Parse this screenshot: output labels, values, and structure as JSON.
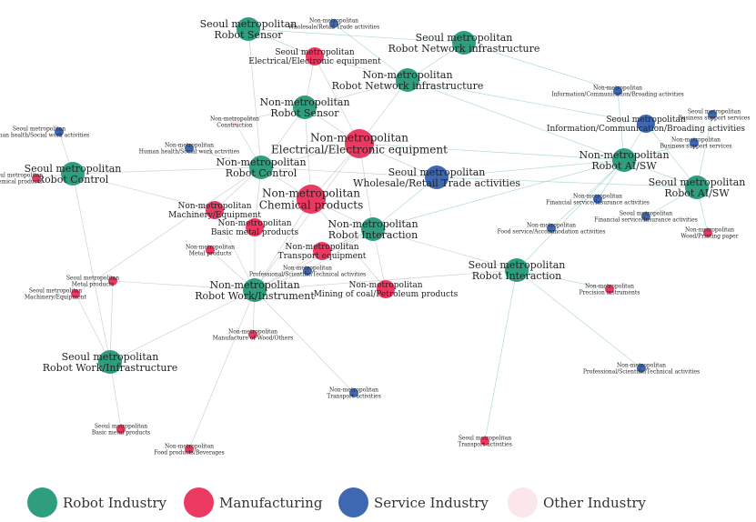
{
  "colors": {
    "robot": "#2e9e7e",
    "manufacturing": "#ea3a62",
    "service": "#3f68b3",
    "other": "#fbe6ea",
    "edge_gray": "#9a9a9a",
    "edge_teal": "#6fbfb0"
  },
  "legend": [
    {
      "label": "Robot Industry",
      "category": "robot"
    },
    {
      "label": "Manufacturing",
      "category": "manufacturing"
    },
    {
      "label": "Service Industry",
      "category": "service"
    },
    {
      "label": "Other Industry",
      "category": "other"
    }
  ],
  "nodes": [
    {
      "id": "smr_sensor",
      "lines": [
        "Seoul metropolitan",
        "Robot Sensor"
      ],
      "category": "robot",
      "size": "m"
    },
    {
      "id": "nmr_wholesale_top",
      "lines": [
        "Non-metropolitan",
        "Wholesale/Retail Trade activities"
      ],
      "category": "service",
      "size": "xs"
    },
    {
      "id": "smr_elec",
      "lines": [
        "Seoul metropolitan",
        "Electrical/Electronic equipment"
      ],
      "category": "manufacturing",
      "size": "s"
    },
    {
      "id": "smr_netinfra",
      "lines": [
        "Seoul metropolitan",
        "Robot Network infrastructure"
      ],
      "category": "robot",
      "size": "m"
    },
    {
      "id": "nmr_netinfra",
      "lines": [
        "Non-metropolitan",
        "Robot Network infrastructure"
      ],
      "category": "robot",
      "size": "m"
    },
    {
      "id": "nmr_sensor",
      "lines": [
        "Non-metropolitan",
        "Robot Sensor"
      ],
      "category": "robot",
      "size": "m"
    },
    {
      "id": "nmr_construction",
      "lines": [
        "Non-metropolitan",
        "Construction"
      ],
      "category": "other",
      "size": "xs"
    },
    {
      "id": "nmr_elec",
      "lines": [
        "Non-metropolitan",
        "Electrical/Electronic equipment"
      ],
      "category": "manufacturing",
      "size": "l"
    },
    {
      "id": "smr_health",
      "lines": [
        "Seoul metropolitan",
        "Human health/Social work activities"
      ],
      "category": "service",
      "size": "xs"
    },
    {
      "id": "nmr_health",
      "lines": [
        "Non-metropolitan",
        "Human health/Social work activities"
      ],
      "category": "service",
      "size": "xs"
    },
    {
      "id": "smr_control",
      "lines": [
        "Seoul metropolitan",
        "Robot Control"
      ],
      "category": "robot",
      "size": "m"
    },
    {
      "id": "smr_chem",
      "lines": [
        "Seoul metropolitan",
        "Chemical products"
      ],
      "category": "manufacturing",
      "size": "xs"
    },
    {
      "id": "nmr_control",
      "lines": [
        "Non-metropolitan",
        "Robot Control"
      ],
      "category": "robot",
      "size": "m"
    },
    {
      "id": "nmr_chem",
      "lines": [
        "Non-metropolitan",
        "Chemical products"
      ],
      "category": "manufacturing",
      "size": "l"
    },
    {
      "id": "nmr_wholesale",
      "lines": [
        "Seoul metropolitan",
        "Wholesale/Retail Trade activities"
      ],
      "category": "service",
      "size": "m"
    },
    {
      "id": "nmr_machinery",
      "lines": [
        "Non-metropolitan",
        "Machinery/Equipment"
      ],
      "category": "manufacturing",
      "size": "s"
    },
    {
      "id": "nmr_basicmetal",
      "lines": [
        "Non-metropolitan",
        "Basic metal products"
      ],
      "category": "manufacturing",
      "size": "s"
    },
    {
      "id": "nmr_interaction",
      "lines": [
        "Non-metropolitan",
        "Robot Interaction"
      ],
      "category": "robot",
      "size": "m"
    },
    {
      "id": "nmr_metal",
      "lines": [
        "Non-metropolitan",
        "Metal products"
      ],
      "category": "manufacturing",
      "size": "xs"
    },
    {
      "id": "nmr_transport_eq",
      "lines": [
        "Non-metropolitan",
        "Transport equipment"
      ],
      "category": "manufacturing",
      "size": "s"
    },
    {
      "id": "nmr_prof",
      "lines": [
        "Non-metropolitan",
        "Professional/Scientific/Technical activities"
      ],
      "category": "service",
      "size": "xs"
    },
    {
      "id": "smr_metal",
      "lines": [
        "Seoul metropolitan",
        "Metal products"
      ],
      "category": "manufacturing",
      "size": "xs"
    },
    {
      "id": "smr_machinery",
      "lines": [
        "Seoul metropolitan",
        "Machinery/Equipment"
      ],
      "category": "manufacturing",
      "size": "xs"
    },
    {
      "id": "nmr_workinst",
      "lines": [
        "Non-metropolitan",
        "Robot Work/Instrument"
      ],
      "category": "robot",
      "size": "m"
    },
    {
      "id": "nmr_mining",
      "lines": [
        "Non-metropolitan",
        "Mining of coal/Petroleum products"
      ],
      "category": "manufacturing",
      "size": "s"
    },
    {
      "id": "nmr_wood",
      "lines": [
        "Non-metropolitan",
        "Manufacture of Wood/Others"
      ],
      "category": "manufacturing",
      "size": "xs"
    },
    {
      "id": "smr_workinfra",
      "lines": [
        "Seoul metropolitan",
        "Robot Work/Infrastructure"
      ],
      "category": "robot",
      "size": "m"
    },
    {
      "id": "nmr_transport_act",
      "lines": [
        "Non-metropolitan",
        "Transport activities"
      ],
      "category": "service",
      "size": "xs"
    },
    {
      "id": "smr_basicmetal",
      "lines": [
        "Seoul metropolitan",
        "Basic metal products"
      ],
      "category": "manufacturing",
      "size": "xs"
    },
    {
      "id": "nmr_food",
      "lines": [
        "Non-metropolitan",
        "Food products/Beverages"
      ],
      "category": "manufacturing",
      "size": "xs"
    },
    {
      "id": "smr_interaction",
      "lines": [
        "Seoul metropolitan",
        "Robot Interaction"
      ],
      "category": "robot",
      "size": "m"
    },
    {
      "id": "nmr_foodservice",
      "lines": [
        "Non-metropolitan",
        "Food service/Accommodation activities"
      ],
      "category": "service",
      "size": "xs"
    },
    {
      "id": "nmr_info",
      "lines": [
        "Non-metropolitan",
        "Information/Communication/Broading activities"
      ],
      "category": "service",
      "size": "xs"
    },
    {
      "id": "smr_bizsupport",
      "lines": [
        "Seoul metropolitan",
        "Business support services"
      ],
      "category": "service",
      "size": "xs"
    },
    {
      "id": "smr_info",
      "lines": [
        "Seoul metropolitan",
        "Information/Communication/Broading activities"
      ],
      "category": "service",
      "size": "s"
    },
    {
      "id": "nmr_bizsupport",
      "lines": [
        "Non-metropolitan",
        "Business support services"
      ],
      "category": "service",
      "size": "xs"
    },
    {
      "id": "nmr_ai",
      "lines": [
        "Non-metropolitan",
        "Robot AI/SW"
      ],
      "category": "robot",
      "size": "m"
    },
    {
      "id": "smr_ai",
      "lines": [
        "Seoul metropolitan",
        "Robot AI/SW"
      ],
      "category": "robot",
      "size": "m"
    },
    {
      "id": "nmr_finance",
      "lines": [
        "Non-metropolitan",
        "Financial service/Insurance activities"
      ],
      "category": "service",
      "size": "xs"
    },
    {
      "id": "smr_finance",
      "lines": [
        "Seoul metropolitan",
        "Financial service/Insurance activities"
      ],
      "category": "service",
      "size": "xs"
    },
    {
      "id": "nmr_printing",
      "lines": [
        "Non-metropolitan",
        "Wood/Printing paper"
      ],
      "category": "manufacturing",
      "size": "xs"
    },
    {
      "id": "nmr_precision",
      "lines": [
        "Non-metropolitan",
        "Precision instruments"
      ],
      "category": "manufacturing",
      "size": "xs"
    },
    {
      "id": "nmr_prof_right",
      "lines": [
        "Non-metropolitan",
        "Professional/Scientific/Technical activities"
      ],
      "category": "service",
      "size": "xs"
    },
    {
      "id": "smr_transport_act",
      "lines": [
        "Seoul metropolitan",
        "Transport activities"
      ],
      "category": "manufacturing",
      "size": "xs"
    }
  ],
  "edges": [
    [
      "nmr_elec",
      "nmr_control",
      "g"
    ],
    [
      "nmr_elec",
      "nmr_sensor",
      "g"
    ],
    [
      "nmr_elec",
      "nmr_interaction",
      "g"
    ],
    [
      "nmr_elec",
      "nmr_workinst",
      "g"
    ],
    [
      "nmr_elec",
      "nmr_netinfra",
      "g"
    ],
    [
      "nmr_elec",
      "nmr_ai",
      "t"
    ],
    [
      "nmr_elec",
      "nmr_wholesale",
      "g"
    ],
    [
      "nmr_elec",
      "smr_elec",
      "g"
    ],
    [
      "nmr_elec",
      "nmr_chem",
      "g"
    ],
    [
      "nmr_chem",
      "nmr_control",
      "g"
    ],
    [
      "nmr_chem",
      "nmr_interaction",
      "g"
    ],
    [
      "nmr_chem",
      "nmr_workinst",
      "g"
    ],
    [
      "nmr_chem",
      "nmr_sensor",
      "g"
    ],
    [
      "nmr_basicmetal",
      "nmr_workinst",
      "g"
    ],
    [
      "nmr_basicmetal",
      "nmr_control",
      "g"
    ],
    [
      "nmr_machinery",
      "nmr_control",
      "g"
    ],
    [
      "nmr_machinery",
      "nmr_workinst",
      "g"
    ],
    [
      "nmr_transport_eq",
      "nmr_interaction",
      "g"
    ],
    [
      "nmr_transport_eq",
      "nmr_workinst",
      "g"
    ],
    [
      "nmr_metal",
      "nmr_workinst",
      "g"
    ],
    [
      "nmr_mining",
      "nmr_interaction",
      "g"
    ],
    [
      "nmr_mining",
      "nmr_chem",
      "g"
    ],
    [
      "smr_elec",
      "smr_sensor",
      "t"
    ],
    [
      "smr_elec",
      "nmr_sensor",
      "g"
    ],
    [
      "smr_elec",
      "nmr_netinfra",
      "g"
    ],
    [
      "smr_netinfra",
      "nmr_netinfra",
      "t"
    ],
    [
      "smr_netinfra",
      "smr_sensor",
      "t"
    ],
    [
      "nmr_wholesale",
      "nmr_ai",
      "t"
    ],
    [
      "nmr_wholesale",
      "smr_ai",
      "t"
    ],
    [
      "nmr_wholesale",
      "nmr_interaction",
      "t"
    ],
    [
      "nmr_wholesale",
      "nmr_control",
      "g"
    ],
    [
      "smr_info",
      "nmr_ai",
      "t"
    ],
    [
      "smr_info",
      "smr_ai",
      "t"
    ],
    [
      "nmr_info",
      "nmr_ai",
      "t"
    ],
    [
      "smr_bizsupport",
      "smr_ai",
      "t"
    ],
    [
      "nmr_bizsupport",
      "nmr_ai",
      "t"
    ],
    [
      "nmr_finance",
      "nmr_ai",
      "t"
    ],
    [
      "smr_finance",
      "smr_ai",
      "t"
    ],
    [
      "nmr_printing",
      "smr_ai",
      "t"
    ],
    [
      "nmr_foodservice",
      "nmr_ai",
      "t"
    ],
    [
      "nmr_ai",
      "smr_ai",
      "t"
    ],
    [
      "nmr_ai",
      "nmr_netinfra",
      "t"
    ],
    [
      "smr_interaction",
      "nmr_interaction",
      "g"
    ],
    [
      "smr_interaction",
      "nmr_ai",
      "t"
    ],
    [
      "smr_interaction",
      "nmr_precision",
      "t"
    ],
    [
      "smr_interaction",
      "nmr_prof_right",
      "t"
    ],
    [
      "smr_interaction",
      "smr_transport_act",
      "t"
    ],
    [
      "smr_interaction",
      "nmr_workinst",
      "g"
    ],
    [
      "smr_control",
      "nmr_control",
      "g"
    ],
    [
      "smr_control",
      "smr_health",
      "g"
    ],
    [
      "smr_control",
      "smr_chem",
      "g"
    ],
    [
      "smr_control",
      "smr_workinfra",
      "g"
    ],
    [
      "smr_workinfra",
      "nmr_workinst",
      "g"
    ],
    [
      "smr_workinfra",
      "smr_basicmetal",
      "g"
    ],
    [
      "smr_workinfra",
      "smr_metal",
      "g"
    ],
    [
      "smr_workinfra",
      "smr_machinery",
      "g"
    ],
    [
      "nmr_workinst",
      "nmr_wood",
      "g"
    ],
    [
      "nmr_workinst",
      "nmr_transport_act",
      "g"
    ],
    [
      "nmr_workinst",
      "nmr_food",
      "g"
    ],
    [
      "nmr_workinst",
      "nmr_prof",
      "g"
    ],
    [
      "nmr_control",
      "nmr_health",
      "g"
    ],
    [
      "nmr_control",
      "nmr_construction",
      "g"
    ],
    [
      "nmr_sensor",
      "nmr_netinfra",
      "g"
    ],
    [
      "nmr_sensor",
      "nmr_control",
      "g"
    ],
    [
      "nmr_interaction",
      "nmr_workinst",
      "g"
    ],
    [
      "nmr_interaction",
      "nmr_ai",
      "t"
    ],
    [
      "nmr_netinfra",
      "nmr_wholesale_top",
      "t"
    ],
    [
      "smr_sensor",
      "nmr_control",
      "g"
    ],
    [
      "nmr_construction",
      "nmr_sensor",
      "g"
    ],
    [
      "smr_metal",
      "nmr_workinst",
      "g"
    ],
    [
      "smr_machinery",
      "nmr_control",
      "g"
    ],
    [
      "nmr_prof",
      "nmr_interaction",
      "g"
    ],
    [
      "smr_netinfra",
      "nmr_info",
      "t"
    ],
    [
      "nmr_netinfra",
      "smr_info",
      "t"
    ],
    [
      "smr_control",
      "nmr_machinery",
      "g"
    ]
  ]
}
